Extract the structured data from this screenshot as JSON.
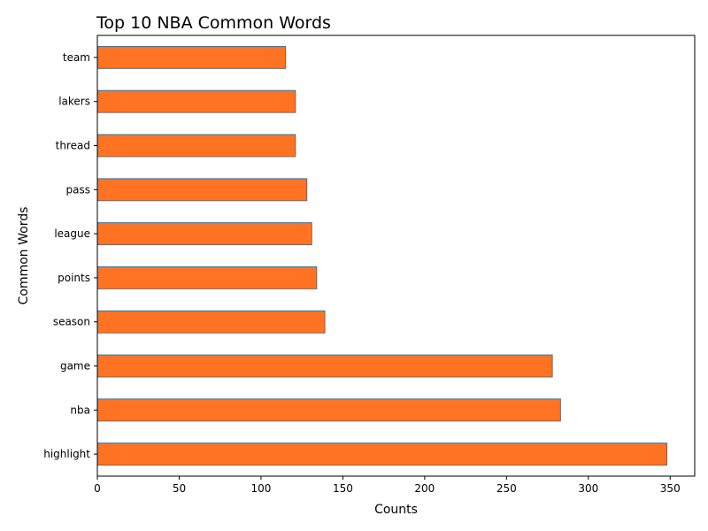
{
  "chart_data": {
    "type": "bar",
    "orientation": "horizontal",
    "title": "Top 10 NBA Common Words",
    "xlabel": "Counts",
    "ylabel": "Common Words",
    "categories": [
      "highlight",
      "nba",
      "game",
      "season",
      "points",
      "league",
      "pass",
      "thread",
      "lakers",
      "team"
    ],
    "values": [
      348,
      283,
      278,
      139,
      134,
      131,
      128,
      121,
      121,
      115
    ],
    "xlim": [
      0,
      365
    ],
    "xticks": [
      0,
      50,
      100,
      150,
      200,
      250,
      300,
      350
    ],
    "grid": false,
    "legend": "none",
    "bar_color": "#ff7322",
    "bar_edge_color": "#5a6e7e"
  }
}
